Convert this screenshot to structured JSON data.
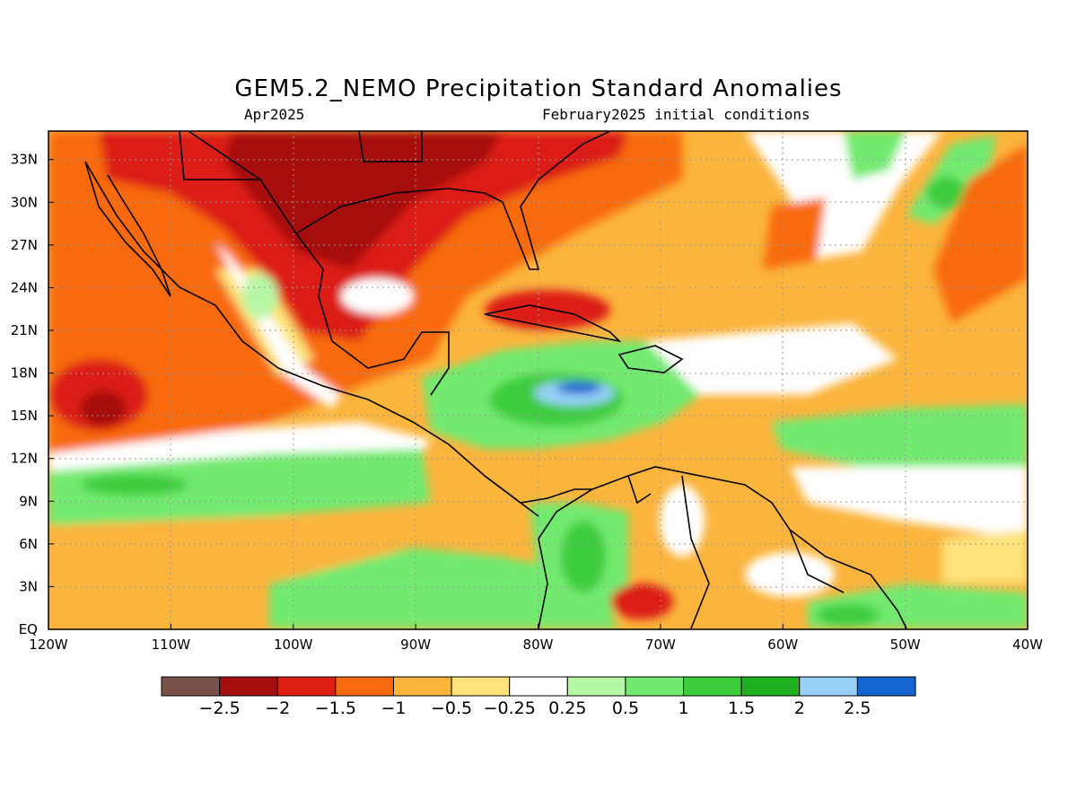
{
  "header": {
    "title": "GEM5.2_NEMO Precipitation Standard Anomalies",
    "period": "Apr2025",
    "init": "February2025 initial conditions"
  },
  "map": {
    "lon_range": [
      -120,
      -40
    ],
    "lat_range": [
      0,
      35
    ],
    "lon_ticks": [
      "120W",
      "110W",
      "100W",
      "90W",
      "80W",
      "70W",
      "60W",
      "50W",
      "40W"
    ],
    "lat_ticks": [
      "EQ",
      "3N",
      "6N",
      "9N",
      "12N",
      "15N",
      "18N",
      "21N",
      "24N",
      "27N",
      "30N",
      "33N"
    ]
  },
  "colorbar": {
    "colors": [
      "#7a5148",
      "#a60d0d",
      "#dc1f12",
      "#f86a10",
      "#fbb43c",
      "#fde37a",
      "#ffffff",
      "#b6f7a6",
      "#72ea6f",
      "#3ccc3c",
      "#1eb01e",
      "#98d0f8",
      "#1464d2"
    ],
    "labels": [
      "−2.5",
      "−2",
      "−1.5",
      "−1",
      "−0.5",
      "−0.25",
      "0.25",
      "0.5",
      "1",
      "1.5",
      "2",
      "2.5"
    ]
  }
}
